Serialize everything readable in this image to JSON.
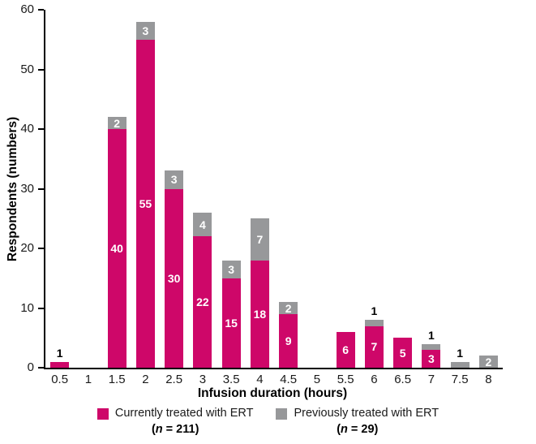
{
  "colors": {
    "current": "#CE0769",
    "previous": "#97989A",
    "axis": "#000000",
    "label_inside": "#FFFFFF",
    "label_above": "#000000"
  },
  "legend": {
    "items": [
      {
        "id": "current",
        "label": "Currently treated with ERT",
        "n_pre": "(",
        "n_italic": "n",
        "n_post": " = 211)"
      },
      {
        "id": "previous",
        "label": "Previously treated with ERT",
        "n_pre": "(",
        "n_italic": "n",
        "n_post": " = 29)"
      }
    ]
  },
  "chart_data": {
    "type": "bar",
    "stacked": true,
    "title": "",
    "xlabel": "Infusion duration (hours)",
    "ylabel": "Respondents (numbers)",
    "categories": [
      "0.5",
      "1",
      "1.5",
      "2",
      "2.5",
      "3",
      "3.5",
      "4",
      "4.5",
      "5",
      "5.5",
      "6",
      "6.5",
      "7",
      "7.5",
      "8"
    ],
    "series": [
      {
        "name": "Currently treated with ERT (n = 211)",
        "color": "#CE0769",
        "values": [
          1,
          0,
          40,
          55,
          30,
          22,
          15,
          18,
          9,
          0,
          6,
          7,
          5,
          3,
          0,
          0
        ]
      },
      {
        "name": "Previously treated with ERT (n = 29)",
        "color": "#97989A",
        "values": [
          0,
          0,
          2,
          3,
          3,
          4,
          3,
          7,
          2,
          0,
          0,
          1,
          0,
          1,
          1,
          2
        ]
      }
    ],
    "ylim": [
      0,
      60
    ],
    "yticks": [
      0,
      10,
      20,
      30,
      40,
      50,
      60
    ],
    "grid": false,
    "legend_position": "bottom",
    "bar_label_rule": "values >= 2 shown in white inside segment; values of 1 shown in black above bar"
  }
}
